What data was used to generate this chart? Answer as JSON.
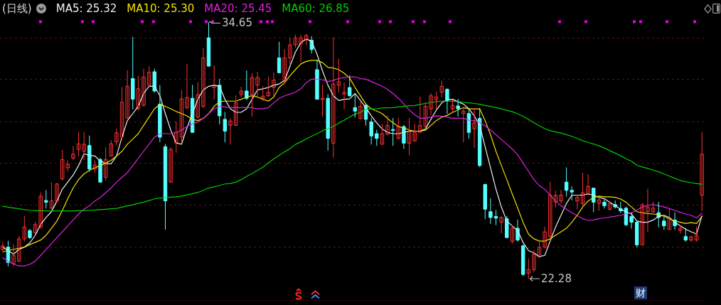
{
  "chart_data": {
    "type": "candlestick",
    "title": "(日线)",
    "categories": [
      null,
      null,
      null,
      null,
      null,
      null,
      null,
      null,
      null,
      null,
      null,
      null,
      null,
      null,
      null,
      null,
      null,
      null,
      null,
      null,
      null,
      null,
      null,
      null,
      null,
      null,
      null,
      null,
      null,
      null,
      null,
      null,
      null,
      null,
      null,
      null,
      null,
      null,
      null,
      null,
      null,
      null,
      null,
      null,
      null,
      null,
      null,
      null,
      null,
      null,
      null,
      null,
      null,
      null,
      null,
      null,
      null,
      null,
      null,
      null,
      null,
      null,
      null,
      null,
      null,
      null,
      null,
      null,
      null,
      null,
      null,
      null,
      null,
      null,
      null,
      null,
      null,
      null,
      null,
      null,
      null,
      null,
      null,
      null,
      null,
      null,
      null,
      null,
      null,
      null,
      null,
      null,
      null,
      null,
      null,
      null,
      null,
      null,
      null,
      null,
      null,
      null,
      null,
      null,
      null,
      null,
      null,
      null,
      null,
      null,
      null,
      null,
      null,
      null,
      null,
      null,
      null,
      null,
      null,
      null,
      null,
      null,
      null,
      null,
      null,
      null,
      null,
      null,
      null,
      null
    ],
    "ohlc": [
      [
        23.7,
        24.04,
        23.64,
        23.87
      ],
      [
        23.81,
        24.1,
        22.9,
        23.07
      ],
      [
        23.01,
        23.93,
        22.95,
        23.41
      ],
      [
        23.12,
        24.32,
        23.12,
        24.21
      ],
      [
        24.21,
        25.29,
        24.1,
        24.78
      ],
      [
        24.61,
        24.67,
        24.21,
        24.27
      ],
      [
        24.5,
        25.01,
        24.44,
        24.9
      ],
      [
        24.78,
        26.44,
        24.72,
        26.27
      ],
      [
        26.06,
        26.55,
        25.69,
        25.98
      ],
      [
        25.69,
        26.93,
        25.64,
        26.04
      ],
      [
        26.04,
        26.89,
        25.98,
        26.86
      ],
      [
        27.1,
        28.49,
        27.06,
        28.04
      ],
      [
        27.64,
        27.98,
        27.47,
        27.81
      ],
      [
        28.1,
        28.67,
        28.04,
        28.3
      ],
      [
        28.53,
        29.35,
        28.21,
        28.8
      ],
      [
        28.44,
        29.35,
        28.04,
        28.78
      ],
      [
        28.72,
        29.18,
        27.47,
        27.58
      ],
      [
        27.58,
        27.98,
        27.41,
        27.77
      ],
      [
        28.04,
        28.1,
        26.93,
        26.95
      ],
      [
        27.18,
        28.61,
        27.06,
        28.04
      ],
      [
        28.21,
        28.95,
        28.21,
        28.8
      ],
      [
        28.89,
        29.52,
        28.74,
        29.33
      ],
      [
        29.12,
        31.52,
        29.06,
        30.81
      ],
      [
        30.04,
        32.34,
        30.04,
        31.58
      ],
      [
        31.95,
        33.95,
        30.49,
        30.95
      ],
      [
        30.49,
        32.07,
        30.43,
        31.46
      ],
      [
        30.66,
        32.41,
        30.61,
        32.03
      ],
      [
        31.63,
        32.52,
        31.52,
        32.26
      ],
      [
        32.28,
        32.41,
        31.29,
        31.35
      ],
      [
        30.72,
        31.63,
        28.89,
        29.12
      ],
      [
        28.66,
        28.78,
        24.67,
        26.04
      ],
      [
        26.95,
        28.61,
        26.93,
        28.53
      ],
      [
        28.84,
        29.86,
        28.38,
        29.35
      ],
      [
        29.12,
        31.38,
        28.89,
        30.97
      ],
      [
        30.55,
        32.64,
        30.49,
        31.04
      ],
      [
        31.0,
        31.63,
        29.35,
        29.35
      ],
      [
        30.09,
        31.75,
        30.03,
        31.18
      ],
      [
        30.61,
        33.4,
        30.55,
        32.95
      ],
      [
        33.92,
        34.65,
        32.55,
        32.55
      ],
      [
        31.52,
        32.57,
        30.95,
        31.63
      ],
      [
        31.63,
        31.92,
        29.75,
        30.15
      ],
      [
        29.98,
        30.32,
        28.89,
        29.41
      ],
      [
        29.69,
        30.03,
        28.78,
        29.9
      ],
      [
        29.69,
        31.12,
        29.69,
        30.78
      ],
      [
        31.18,
        31.54,
        31.06,
        31.35
      ],
      [
        31.35,
        32.32,
        30.93,
        31.0
      ],
      [
        31.18,
        32.2,
        30.13,
        32.0
      ],
      [
        31.63,
        32.26,
        31.12,
        32.0
      ],
      [
        31.0,
        31.58,
        30.89,
        31.1
      ],
      [
        31.12,
        32.03,
        31.09,
        31.29
      ],
      [
        31.52,
        32.23,
        31.12,
        31.86
      ],
      [
        32.95,
        33.71,
        32.23,
        32.23
      ],
      [
        31.86,
        33.35,
        31.69,
        32.95
      ],
      [
        32.95,
        33.92,
        32.66,
        33.58
      ],
      [
        33.58,
        34.05,
        33.46,
        33.92
      ],
      [
        33.63,
        34.05,
        32.78,
        33.92
      ],
      [
        33.83,
        34.08,
        33.58,
        34.03
      ],
      [
        33.8,
        33.98,
        33.18,
        33.35
      ],
      [
        32.38,
        32.83,
        30.95,
        30.95
      ],
      [
        30.93,
        31.63,
        30.13,
        31.0
      ],
      [
        31.0,
        31.18,
        28.49,
        29.06
      ],
      [
        28.83,
        33.92,
        28.15,
        31.69
      ],
      [
        31.63,
        32.89,
        31.29,
        31.8
      ],
      [
        31.2,
        31.75,
        30.49,
        31.29
      ],
      [
        31.52,
        32.09,
        31.09,
        31.12
      ],
      [
        30.55,
        31.2,
        30.09,
        30.38
      ],
      [
        30.03,
        30.83,
        29.98,
        30.61
      ],
      [
        30.66,
        30.72,
        29.69,
        29.98
      ],
      [
        29.86,
        30.03,
        28.78,
        29.18
      ],
      [
        29.29,
        29.46,
        28.72,
        29.06
      ],
      [
        28.78,
        29.75,
        28.75,
        29.29
      ],
      [
        29.26,
        30.15,
        29.24,
        29.69
      ],
      [
        29.49,
        30.03,
        28.72,
        29.44
      ],
      [
        29.06,
        30.03,
        29.03,
        29.63
      ],
      [
        29.63,
        29.69,
        28.57,
        28.83
      ],
      [
        28.83,
        30.03,
        28.26,
        29.41
      ],
      [
        28.95,
        29.75,
        28.89,
        29.35
      ],
      [
        29.35,
        31.06,
        29.35,
        29.69
      ],
      [
        29.63,
        30.78,
        29.58,
        30.61
      ],
      [
        30.49,
        31.23,
        30.21,
        31.12
      ],
      [
        30.93,
        31.29,
        30.49,
        31.06
      ],
      [
        31.29,
        31.83,
        31.06,
        31.58
      ],
      [
        31.43,
        31.46,
        30.26,
        30.89
      ],
      [
        30.49,
        30.89,
        30.35,
        30.66
      ],
      [
        30.63,
        30.95,
        30.13,
        30.49
      ],
      [
        30.26,
        30.55,
        28.89,
        30.38
      ],
      [
        30.26,
        30.43,
        29.06,
        29.35
      ],
      [
        29.52,
        30.49,
        28.61,
        29.81
      ],
      [
        30.03,
        30.51,
        27.69,
        27.75
      ],
      [
        26.84,
        26.84,
        25.18,
        25.64
      ],
      [
        25.52,
        26.15,
        24.95,
        25.24
      ],
      [
        25.29,
        25.58,
        24.89,
        25.21
      ],
      [
        25.01,
        25.29,
        24.49,
        25.24
      ],
      [
        25.18,
        25.29,
        24.27,
        24.27
      ],
      [
        24.09,
        24.84,
        23.98,
        24.72
      ],
      [
        24.72,
        25.12,
        24.09,
        24.15
      ],
      [
        23.87,
        23.92,
        22.44,
        22.49
      ],
      [
        22.55,
        23.24,
        22.28,
        22.72
      ],
      [
        22.72,
        23.64,
        22.61,
        23.47
      ],
      [
        23.35,
        24.15,
        23.3,
        23.81
      ],
      [
        23.81,
        24.78,
        23.75,
        24.55
      ],
      [
        24.32,
        26.95,
        24.27,
        26.32
      ],
      [
        25.98,
        26.52,
        25.75,
        26.32
      ],
      [
        26.04,
        26.55,
        25.92,
        26.32
      ],
      [
        26.95,
        27.64,
        26.27,
        26.55
      ],
      [
        26.55,
        26.72,
        26.09,
        26.47
      ],
      [
        26.04,
        26.32,
        25.64,
        26.21
      ],
      [
        25.92,
        27.38,
        25.83,
        26.44
      ],
      [
        26.38,
        27.31,
        26.32,
        26.74
      ],
      [
        26.66,
        26.66,
        25.52,
        25.98
      ],
      [
        25.92,
        26.21,
        25.58,
        26.09
      ],
      [
        25.98,
        26.09,
        25.69,
        25.81
      ],
      [
        25.64,
        25.98,
        25.58,
        25.92
      ],
      [
        25.86,
        26.04,
        25.69,
        25.75
      ],
      [
        25.67,
        25.98,
        25.47,
        25.56
      ],
      [
        25.69,
        25.75,
        24.84,
        24.89
      ],
      [
        25.29,
        25.47,
        24.72,
        25.01
      ],
      [
        25.01,
        25.07,
        23.81,
        23.92
      ],
      [
        23.92,
        25.92,
        23.92,
        25.86
      ],
      [
        25.52,
        26.61,
        24.55,
        25.75
      ],
      [
        25.52,
        25.98,
        25.47,
        25.69
      ],
      [
        25.47,
        25.98,
        24.78,
        25.24
      ],
      [
        25.07,
        25.24,
        24.66,
        24.84
      ],
      [
        24.66,
        25.67,
        24.66,
        25.18
      ],
      [
        25.12,
        25.47,
        24.66,
        24.84
      ],
      [
        24.61,
        24.84,
        24.49,
        24.72
      ],
      [
        24.32,
        24.72,
        24.09,
        24.15
      ],
      [
        24.15,
        24.35,
        24.09,
        24.3
      ],
      [
        24.15,
        24.78,
        24.09,
        24.38
      ],
      [
        26.32,
        29.35,
        25.56,
        28.3
      ]
    ],
    "colors": [
      "#ff3030",
      "#55ffff",
      "#ff3030",
      "#ff3030",
      "#ff3030",
      "#55ffff",
      "#ff3030",
      "#ff3030",
      "#55ffff",
      "#ff3030",
      "#ff3030",
      "#ff3030",
      "#ff3030",
      "#ff3030",
      "#ff3030",
      "#ff3030",
      "#55ffff",
      "#ff3030",
      "#55ffff",
      "#ff3030",
      "#ff3030",
      "#ff3030",
      "#ff3030",
      "#ff3030",
      "#55ffff",
      "#ff3030",
      "#ff3030",
      "#ff3030",
      "#55ffff",
      "#55ffff",
      "#55ffff",
      "#ff3030",
      "#ff3030",
      "#ff3030",
      "#ff3030",
      "#55ffff",
      "#ff3030",
      "#ff3030",
      "#55ffff",
      "#ff3030",
      "#55ffff",
      "#55ffff",
      "#ff3030",
      "#ff3030",
      "#ff3030",
      "#55ffff",
      "#ff3030",
      "#ff3030",
      "#ff3030",
      "#ff3030",
      "#ff3030",
      "#55ffff",
      "#ff3030",
      "#ff3030",
      "#ff3030",
      "#ff3030",
      "#ff3030",
      "#55ffff",
      "#55ffff",
      "#ff3030",
      "#55ffff",
      "#ff3030",
      "#ff3030",
      "#ff3030",
      "#55ffff",
      "#55ffff",
      "#ff3030",
      "#55ffff",
      "#55ffff",
      "#55ffff",
      "#ff3030",
      "#ff3030",
      "#55ffff",
      "#ff3030",
      "#55ffff",
      "#ff3030",
      "#ff3030",
      "#ff3030",
      "#ff3030",
      "#ff3030",
      "#ff3030",
      "#ff3030",
      "#55ffff",
      "#ff3030",
      "#55ffff",
      "#ff3030",
      "#55ffff",
      "#ff3030",
      "#55ffff",
      "#55ffff",
      "#55ffff",
      "#55ffff",
      "#ff3030",
      "#55ffff",
      "#ff3030",
      "#55ffff",
      "#55ffff",
      "#ff3030",
      "#ff3030",
      "#ff3030",
      "#ff3030",
      "#ff3030",
      "#ff3030",
      "#ff3030",
      "#55ffff",
      "#55ffff",
      "#ff3030",
      "#ff3030",
      "#ff3030",
      "#55ffff",
      "#ff3030",
      "#55ffff",
      "#ff3030",
      "#55ffff",
      "#55ffff",
      "#55ffff",
      "#55ffff",
      "#55ffff",
      "#ff3030",
      "#ff3030",
      "#ff3030",
      "#55ffff",
      "#55ffff",
      "#ff3030",
      "#55ffff",
      "#ff3030",
      "#55ffff",
      "#ff3030",
      "#ff3030",
      "#ff3030"
    ],
    "series": [
      {
        "name": "MA5: 25.32",
        "type": "line",
        "color": "#f0f0f0",
        "values": [
          23.81,
          23.64,
          23.47,
          23.7,
          23.81,
          24.01,
          24.38,
          24.9,
          25.24,
          25.52,
          26.04,
          26.61,
          26.95,
          27.29,
          27.75,
          28.32,
          28.24,
          28.21,
          27.98,
          27.84,
          27.83,
          28.21,
          29.12,
          29.92,
          30.26,
          30.61,
          31.23,
          31.58,
          31.58,
          31.12,
          30.26,
          29.46,
          28.84,
          28.78,
          29.58,
          30.26,
          30.95,
          31.4,
          31.58,
          31.63,
          31.58,
          30.95,
          30.49,
          30.32,
          30.32,
          30.49,
          30.95,
          31.4,
          31.46,
          31.52,
          31.63,
          31.69,
          31.86,
          32.55,
          33.23,
          33.69,
          33.86,
          33.75,
          33.12,
          32.32,
          31.63,
          31.12,
          30.89,
          30.95,
          30.97,
          31.23,
          30.89,
          30.55,
          30.15,
          29.81,
          29.52,
          29.35,
          29.29,
          29.29,
          29.35,
          29.41,
          29.41,
          29.41,
          29.52,
          29.98,
          30.43,
          30.78,
          30.93,
          30.95,
          30.83,
          30.72,
          30.49,
          30.15,
          29.69,
          28.66,
          27.64,
          26.61,
          25.75,
          25.07,
          24.84,
          24.61,
          24.04,
          23.64,
          23.53,
          23.35,
          23.41,
          24.1,
          24.78,
          25.35,
          25.92,
          26.32,
          26.32,
          26.32,
          26.38,
          26.32,
          26.21,
          26.15,
          25.98,
          25.81,
          25.64,
          25.52,
          25.41,
          25.07,
          25.01,
          25.01,
          25.12,
          25.29,
          25.35,
          25.24,
          25.01,
          24.84,
          24.67,
          24.55,
          24.44,
          25.32
        ]
      },
      {
        "name": "MA10: 25.30",
        "type": "line",
        "color": "#f0e000",
        "values": [
          23.58,
          23.64,
          23.7,
          23.75,
          23.81,
          23.93,
          24.04,
          24.15,
          24.38,
          24.72,
          25.07,
          25.58,
          26.15,
          26.67,
          27.07,
          27.35,
          27.52,
          27.64,
          27.75,
          27.87,
          28.0,
          28.21,
          28.44,
          28.78,
          29.03,
          29.29,
          29.69,
          30.09,
          30.49,
          30.7,
          30.61,
          30.49,
          30.36,
          30.26,
          30.15,
          29.98,
          29.92,
          30.03,
          30.26,
          30.61,
          30.83,
          30.86,
          30.86,
          30.86,
          30.95,
          31.06,
          31.12,
          31.06,
          30.95,
          30.86,
          31.06,
          31.52,
          31.75,
          32.09,
          32.38,
          32.66,
          32.78,
          32.83,
          32.83,
          32.72,
          32.49,
          32.46,
          32.38,
          32.21,
          31.98,
          31.52,
          31.12,
          30.72,
          30.49,
          30.38,
          30.26,
          30.03,
          29.81,
          29.63,
          29.58,
          29.46,
          29.41,
          29.41,
          29.46,
          29.69,
          29.92,
          30.09,
          30.17,
          30.32,
          30.43,
          30.55,
          30.49,
          30.49,
          30.49,
          29.92,
          29.24,
          28.44,
          27.75,
          27.07,
          26.38,
          25.7,
          25.01,
          24.44,
          24.21,
          24.1,
          24.1,
          24.21,
          24.38,
          24.55,
          24.72,
          25.01,
          25.35,
          25.75,
          26.04,
          26.21,
          26.27,
          26.24,
          26.24,
          26.21,
          26.13,
          25.98,
          25.75,
          25.52,
          25.47,
          25.43,
          25.41,
          25.38,
          25.3,
          25.18,
          25.07,
          25.01,
          24.95,
          24.99,
          24.95,
          25.3
        ]
      },
      {
        "name": "MA20: 25.45",
        "type": "line",
        "color": "#e020e0",
        "values": [
          23.3,
          23.13,
          22.98,
          22.9,
          22.9,
          22.98,
          23.13,
          23.41,
          23.7,
          23.98,
          24.27,
          24.55,
          24.84,
          25.12,
          25.41,
          25.64,
          25.81,
          26.04,
          26.21,
          26.44,
          26.67,
          26.95,
          27.18,
          27.41,
          27.75,
          28.09,
          28.44,
          28.78,
          29.12,
          29.29,
          29.29,
          29.29,
          29.35,
          29.46,
          29.64,
          29.75,
          29.86,
          30.03,
          30.26,
          30.49,
          30.61,
          30.58,
          30.55,
          30.55,
          30.55,
          30.55,
          30.55,
          30.49,
          30.49,
          30.55,
          30.78,
          31.0,
          31.12,
          31.2,
          31.29,
          31.46,
          31.75,
          31.92,
          31.92,
          31.89,
          31.81,
          31.86,
          31.95,
          32.0,
          32.03,
          32.03,
          31.95,
          31.92,
          31.81,
          31.69,
          31.58,
          31.43,
          31.23,
          31.0,
          30.72,
          30.43,
          30.21,
          30.03,
          30.03,
          30.09,
          30.15,
          30.13,
          30.09,
          30.03,
          30.03,
          30.03,
          29.94,
          29.92,
          29.83,
          29.67,
          29.46,
          29.24,
          29.01,
          28.78,
          28.55,
          28.27,
          27.87,
          27.47,
          27.07,
          26.78,
          26.61,
          26.32,
          26.04,
          25.81,
          25.64,
          25.47,
          25.33,
          25.18,
          25.1,
          25.12,
          25.18,
          25.22,
          25.26,
          25.3,
          25.35,
          25.41,
          25.47,
          25.6,
          25.75,
          25.83,
          25.87,
          25.81,
          25.75,
          25.67,
          25.58,
          25.49,
          25.41,
          25.35,
          25.22,
          25.45
        ]
      },
      {
        "name": "MA60: 26.85",
        "type": "line",
        "color": "#00cc00",
        "values": [
          25.78,
          25.74,
          25.7,
          25.66,
          25.62,
          25.59,
          25.58,
          25.57,
          25.56,
          25.56,
          25.56,
          25.56,
          25.56,
          25.56,
          25.57,
          25.58,
          25.59,
          25.6,
          25.62,
          25.64,
          25.66,
          25.68,
          25.74,
          25.8,
          25.86,
          25.92,
          25.98,
          26.06,
          26.14,
          26.18,
          26.2,
          26.22,
          26.24,
          26.27,
          26.33,
          26.39,
          26.45,
          26.55,
          26.67,
          26.72,
          26.79,
          26.86,
          26.88,
          26.95,
          27.07,
          27.23,
          27.36,
          27.52,
          27.67,
          27.87,
          28.07,
          28.24,
          28.41,
          28.57,
          28.77,
          28.89,
          29.04,
          29.17,
          29.29,
          29.43,
          29.53,
          29.64,
          29.8,
          29.94,
          30.1,
          30.23,
          30.32,
          30.47,
          30.49,
          30.5,
          30.53,
          30.54,
          30.55,
          30.58,
          30.61,
          30.63,
          30.65,
          30.7,
          30.75,
          30.8,
          30.83,
          30.86,
          30.86,
          30.86,
          30.83,
          30.81,
          30.78,
          30.75,
          30.71,
          30.65,
          30.61,
          30.55,
          30.49,
          30.42,
          30.35,
          30.25,
          30.12,
          29.98,
          29.82,
          29.67,
          29.53,
          29.43,
          29.37,
          29.32,
          29.24,
          29.16,
          29.06,
          28.95,
          28.87,
          28.79,
          28.7,
          28.6,
          28.47,
          28.35,
          28.22,
          28.08,
          27.96,
          27.77,
          27.68,
          27.61,
          27.53,
          27.45,
          27.34,
          27.24,
          27.13,
          27.03,
          26.97,
          26.92,
          26.88,
          26.85
        ]
      }
    ],
    "ylim": [
      21.22,
      34.99
    ],
    "yticks": [
      23.82,
      25.84,
      27.87,
      29.89,
      31.92,
      33.94
    ],
    "grid": "y",
    "tick_labels": false,
    "legend": "top left",
    "annotations": [
      "34.65",
      "22.28",
      "财"
    ]
  }
}
